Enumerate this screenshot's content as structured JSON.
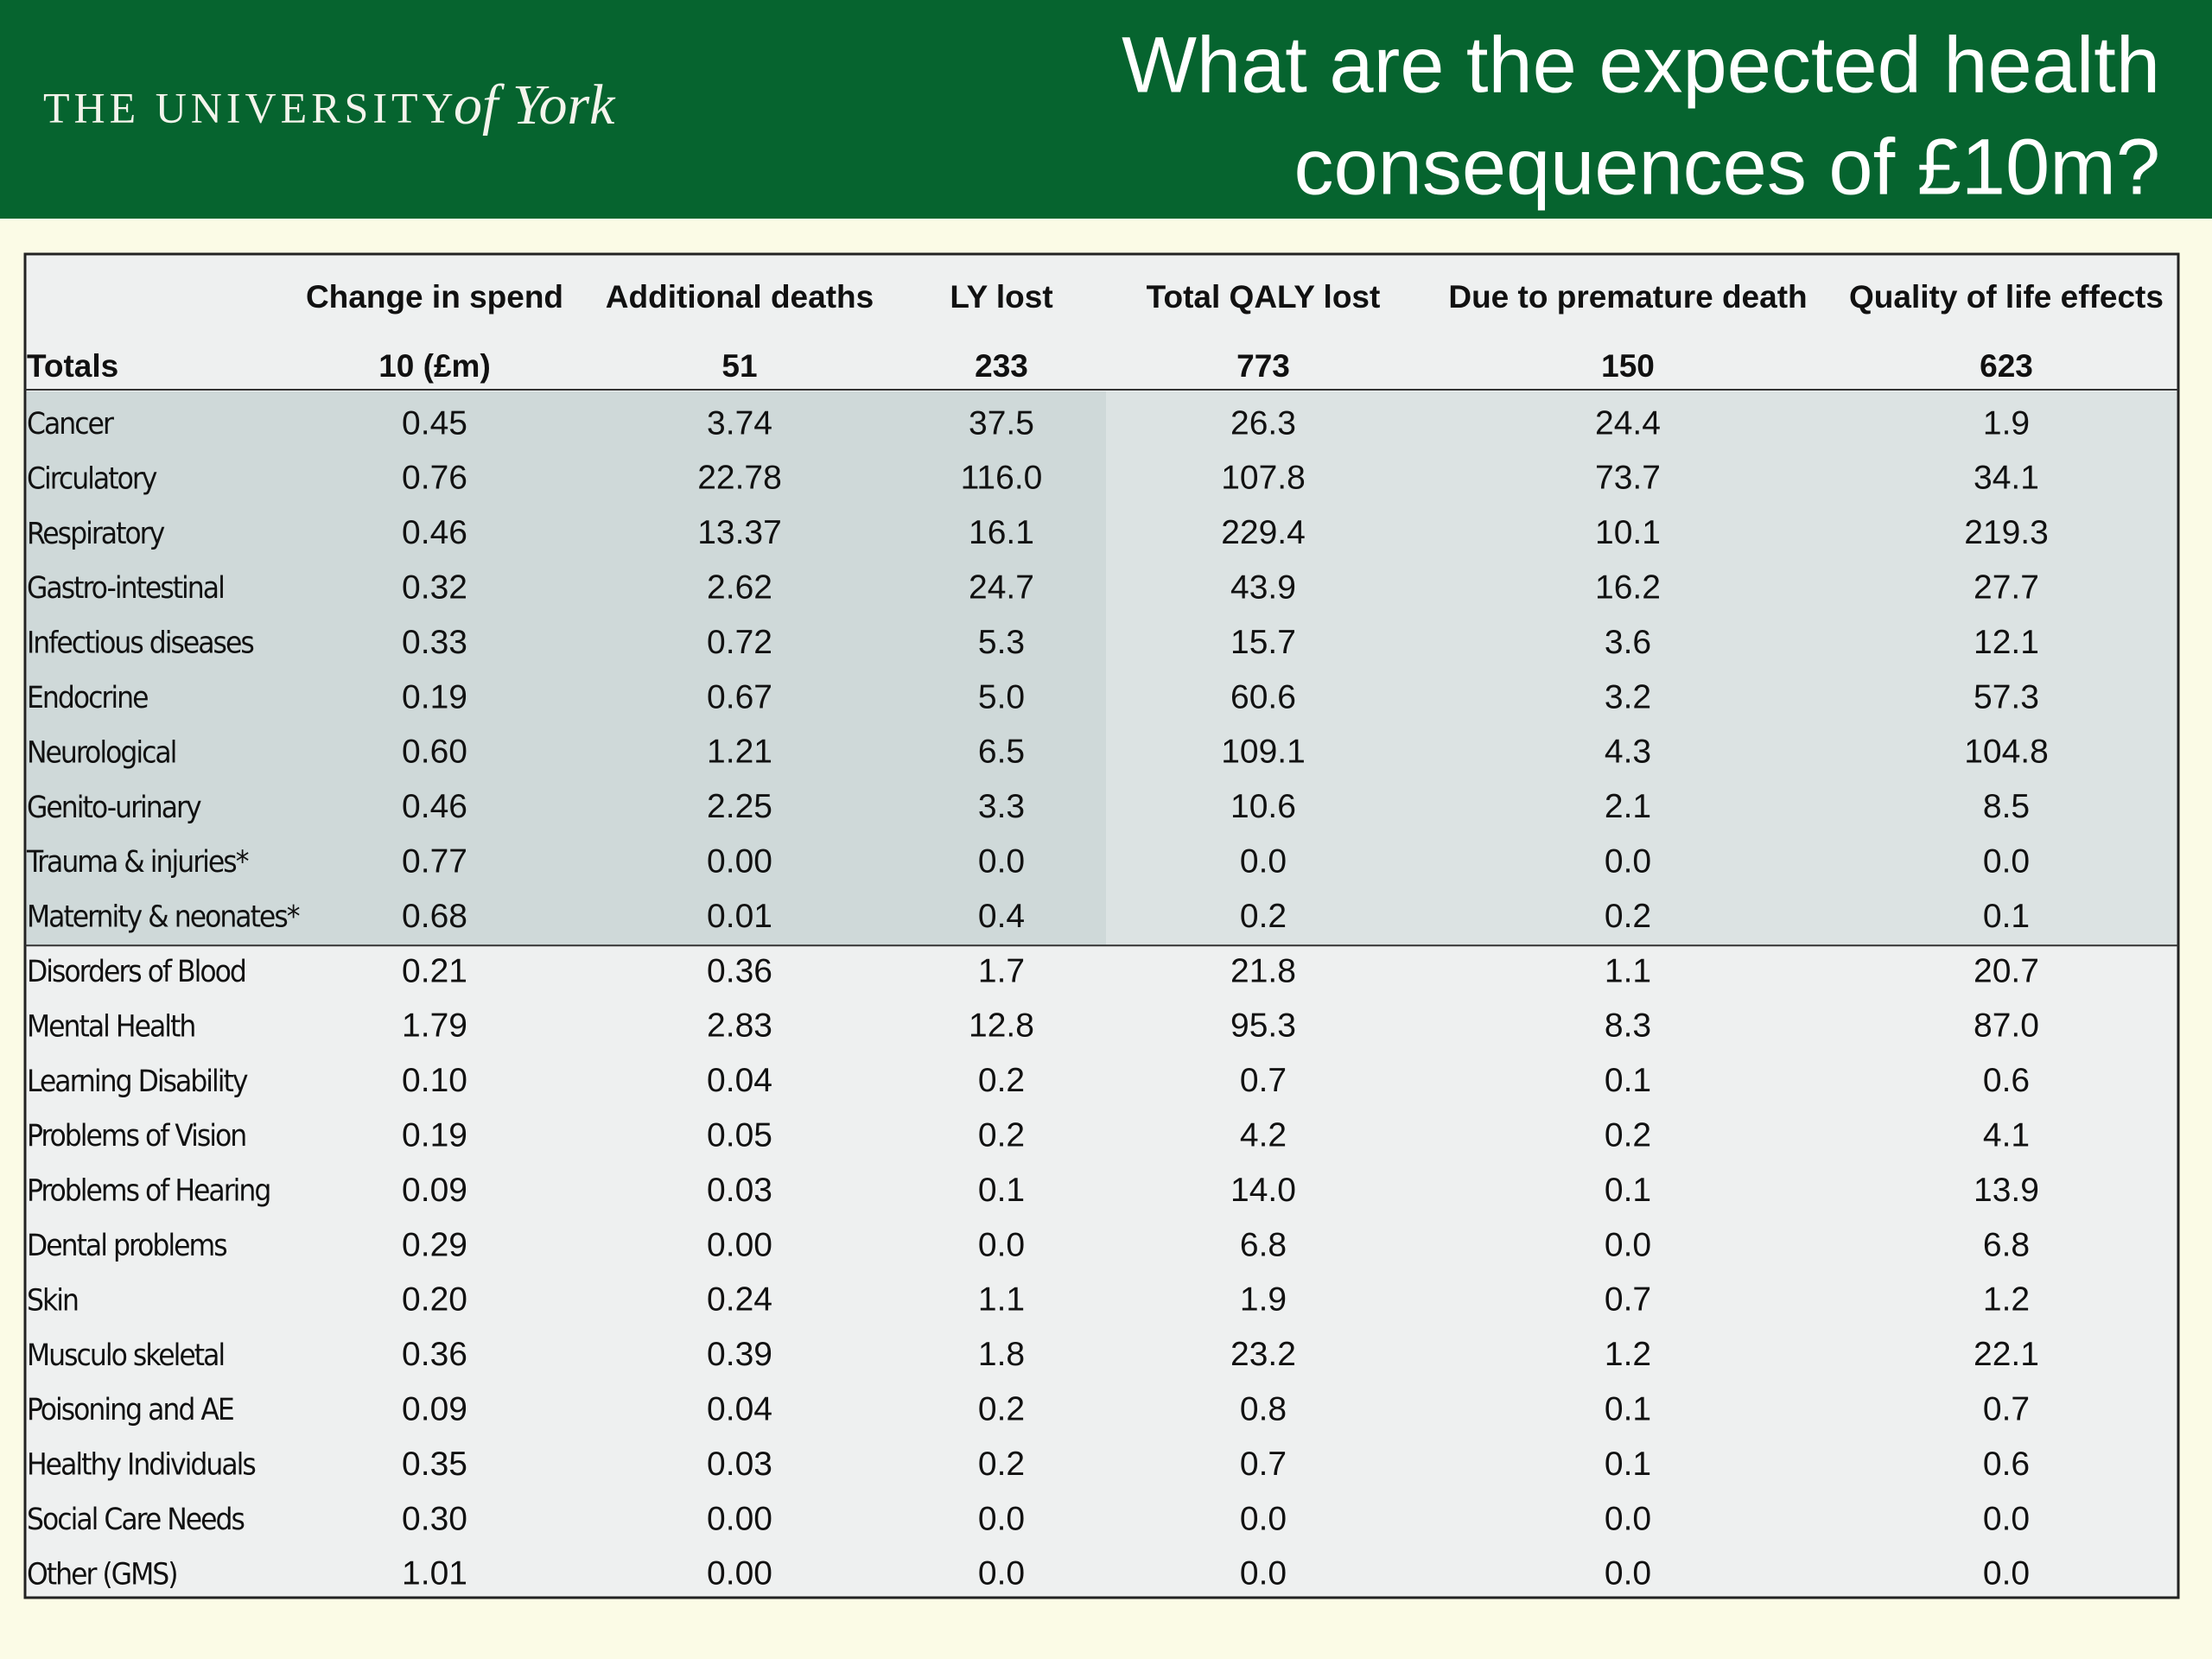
{
  "header": {
    "logo": {
      "main": "THE UNIVERSITY",
      "script": "of York"
    },
    "title": [
      "What are the expected health",
      "consequences of £10m?"
    ]
  },
  "table": {
    "columns": [
      "Change in spend",
      "Additional deaths",
      "LY lost",
      "Total QALY lost",
      "Due to premature death",
      "Quality of life effects"
    ],
    "totals": [
      "Totals",
      "10 (£m)",
      "51",
      "233",
      "773",
      "150",
      "623"
    ],
    "rows": [
      [
        "Cancer",
        "0.45",
        "3.74",
        "37.5",
        "26.3",
        "24.4",
        "1.9"
      ],
      [
        "Circulatory",
        "0.76",
        "22.78",
        "116.0",
        "107.8",
        "73.7",
        "34.1"
      ],
      [
        "Respiratory",
        "0.46",
        "13.37",
        "16.1",
        "229.4",
        "10.1",
        "219.3"
      ],
      [
        "Gastro-intestinal",
        "0.32",
        "2.62",
        "24.7",
        "43.9",
        "16.2",
        "27.7"
      ],
      [
        "Infectious diseases",
        "0.33",
        "0.72",
        "5.3",
        "15.7",
        "3.6",
        "12.1"
      ],
      [
        "Endocrine",
        "0.19",
        "0.67",
        "5.0",
        "60.6",
        "3.2",
        "57.3"
      ],
      [
        "Neurological",
        "0.60",
        "1.21",
        "6.5",
        "109.1",
        "4.3",
        "104.8"
      ],
      [
        "Genito-urinary",
        "0.46",
        "2.25",
        "3.3",
        "10.6",
        "2.1",
        "8.5"
      ],
      [
        "Trauma & injuries*",
        "0.77",
        "0.00",
        "0.0",
        "0.0",
        "0.0",
        "0.0"
      ],
      [
        "Maternity & neonates*",
        "0.68",
        "0.01",
        "0.4",
        "0.2",
        "0.2",
        "0.1"
      ],
      [
        "Disorders of Blood",
        "0.21",
        "0.36",
        "1.7",
        "21.8",
        "1.1",
        "20.7"
      ],
      [
        "Mental Health",
        "1.79",
        "2.83",
        "12.8",
        "95.3",
        "8.3",
        "87.0"
      ],
      [
        "Learning Disability",
        "0.10",
        "0.04",
        "0.2",
        "0.7",
        "0.1",
        "0.6"
      ],
      [
        "Problems of Vision",
        "0.19",
        "0.05",
        "0.2",
        "4.2",
        "0.2",
        "4.1"
      ],
      [
        "Problems of Hearing",
        "0.09",
        "0.03",
        "0.1",
        "14.0",
        "0.1",
        "13.9"
      ],
      [
        "Dental problems",
        "0.29",
        "0.00",
        "0.0",
        "6.8",
        "0.0",
        "6.8"
      ],
      [
        "Skin",
        "0.20",
        "0.24",
        "1.1",
        "1.9",
        "0.7",
        "1.2"
      ],
      [
        "Musculo skeletal",
        "0.36",
        "0.39",
        "1.8",
        "23.2",
        "1.2",
        "22.1"
      ],
      [
        "Poisoning and AE",
        "0.09",
        "0.04",
        "0.2",
        "0.8",
        "0.1",
        "0.7"
      ],
      [
        "Healthy Individuals",
        "0.35",
        "0.03",
        "0.2",
        "0.7",
        "0.1",
        "0.6"
      ],
      [
        "Social Care Needs",
        "0.30",
        "0.00",
        "0.0",
        "0.0",
        "0.0",
        "0.0"
      ],
      [
        "Other (GMS)",
        "1.01",
        "0.00",
        "0.0",
        "0.0",
        "0.0",
        "0.0"
      ]
    ]
  }
}
